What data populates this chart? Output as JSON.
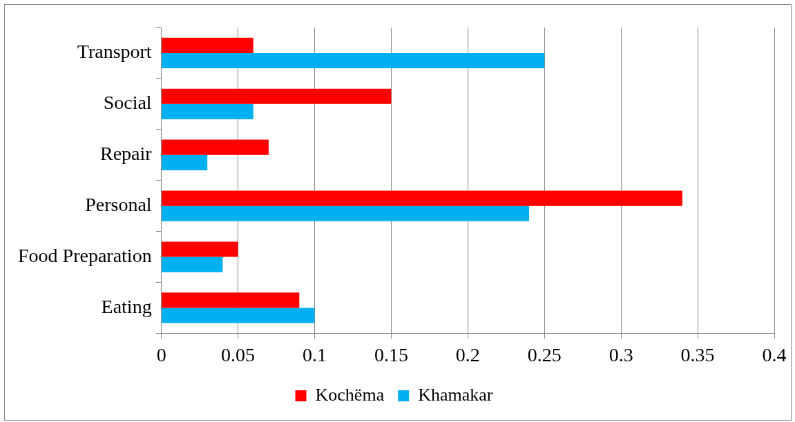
{
  "chart_data": {
    "type": "bar",
    "orientation": "horizontal",
    "categories": [
      "Transport",
      "Social",
      "Repair",
      "Personal",
      "Food Preparation",
      "Eating"
    ],
    "series": [
      {
        "name": "Kochëma",
        "color": "#ff0000",
        "values": [
          0.06,
          0.15,
          0.07,
          0.34,
          0.05,
          0.09
        ]
      },
      {
        "name": "Khamakar",
        "color": "#00b0f0",
        "values": [
          0.25,
          0.06,
          0.03,
          0.24,
          0.04,
          0.1
        ]
      }
    ],
    "xlim": [
      0,
      0.4
    ],
    "xticks": [
      0,
      0.05,
      0.1,
      0.15,
      0.2,
      0.25,
      0.3,
      0.35,
      0.4
    ],
    "grid": "x",
    "legend": "bottom"
  }
}
